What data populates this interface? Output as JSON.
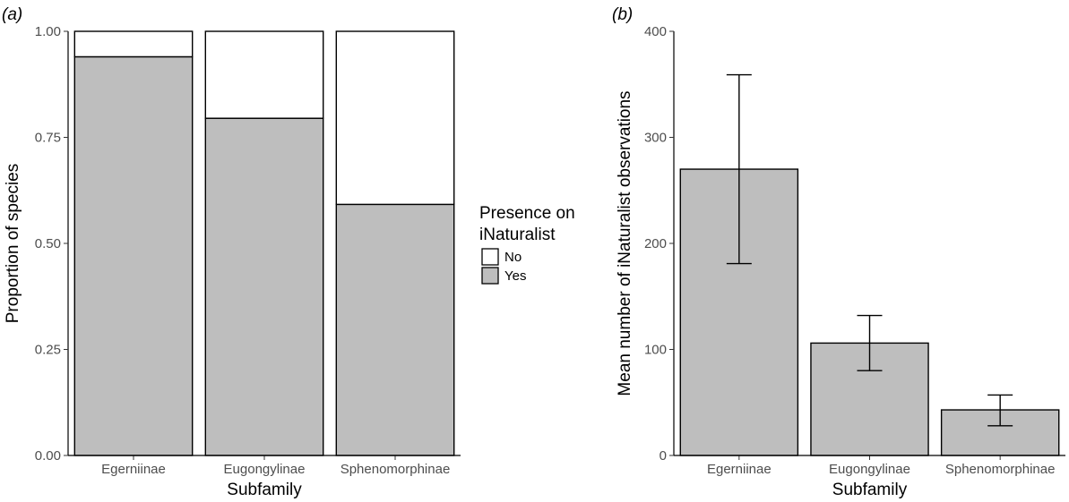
{
  "chart_data": [
    {
      "type": "bar",
      "subtype": "stacked-proportion",
      "panel_label": "(a)",
      "categories": [
        "Egerniinae",
        "Eugongylinae",
        "Sphenomorphinae"
      ],
      "series": [
        {
          "name": "Yes",
          "values": [
            0.94,
            0.795,
            0.592
          ],
          "color": "#bebebe"
        },
        {
          "name": "No",
          "values": [
            0.06,
            0.205,
            0.408
          ],
          "color": "#ffffff"
        }
      ],
      "xlabel": "Subfamily",
      "ylabel": "Proportion of species",
      "ylim": [
        0,
        1
      ],
      "yticks": [
        0,
        0.25,
        0.5,
        0.75,
        1
      ],
      "ytick_labels": [
        "0.00",
        "0.25",
        "0.50",
        "0.75",
        "1.00"
      ],
      "grid": false,
      "legend": {
        "title_line1": "Presence on",
        "title_line2": "iNaturalist",
        "placement": "right",
        "entries": [
          {
            "label": "No",
            "color": "#ffffff"
          },
          {
            "label": "Yes",
            "color": "#bebebe"
          }
        ]
      }
    },
    {
      "type": "bar",
      "subtype": "mean-with-error-bars",
      "panel_label": "(b)",
      "categories": [
        "Egerniinae",
        "Eugongylinae",
        "Sphenomorphinae"
      ],
      "values": [
        270,
        106,
        43
      ],
      "error_low": [
        181,
        80,
        28
      ],
      "error_high": [
        359,
        132,
        57
      ],
      "bar_color": "#bebebe",
      "xlabel": "Subfamily",
      "ylabel": "Mean number of iNaturalist observations",
      "ylim": [
        0,
        400
      ],
      "yticks": [
        0,
        100,
        200,
        300,
        400
      ],
      "ytick_labels": [
        "0",
        "100",
        "200",
        "300",
        "400"
      ],
      "grid": false
    }
  ]
}
